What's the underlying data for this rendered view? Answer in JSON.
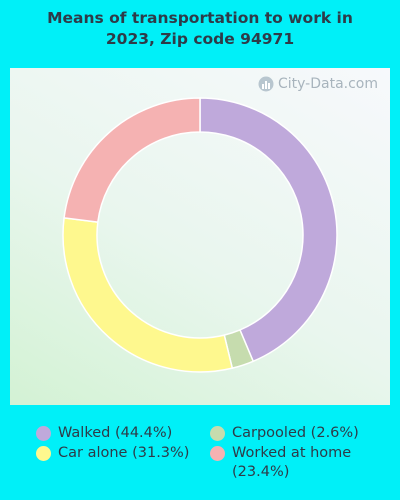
{
  "title_lines": [
    "Means of transportation to work in",
    "2023, Zip code 94971"
  ],
  "watermark": "City-Data.com",
  "colors": {
    "background": "#00f0f8"
  },
  "chart_data": {
    "type": "pie",
    "donut": true,
    "title": "Means of transportation to work in 2023, Zip code 94971",
    "categories": [
      "Walked",
      "Carpooled",
      "Car alone",
      "Worked at home"
    ],
    "values": [
      44.4,
      2.6,
      31.3,
      23.4
    ],
    "colors": [
      "#bfa9db",
      "#c6dcae",
      "#fef88e",
      "#f5b2b2"
    ],
    "legend": [
      {
        "label": "Walked (44.4%)",
        "color": "#bfa9db"
      },
      {
        "label": "Car alone (31.3%)",
        "color": "#fef88e"
      },
      {
        "label": "Carpooled (2.6%)",
        "color": "#c6dcae"
      },
      {
        "label": "Worked at home (23.4%)",
        "color": "#f5b2b2"
      }
    ]
  }
}
